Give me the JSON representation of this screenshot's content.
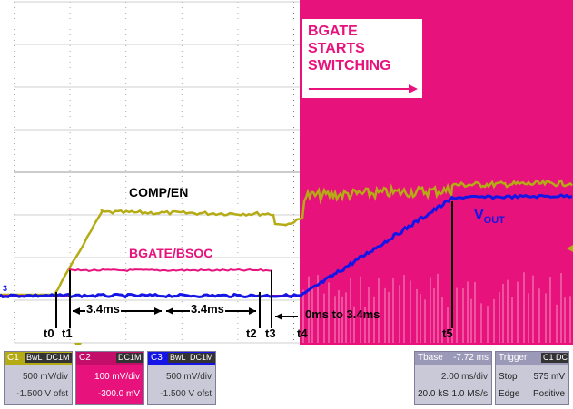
{
  "annotations": {
    "bgate_starts": [
      "BGATE",
      "STARTS",
      "SWITCHING"
    ],
    "comp_en": "COMP/EN",
    "bgate_bsoc": "BGATE/BSOC",
    "vout_main": "V",
    "vout_sub": "OUT",
    "interval1": "3.4ms",
    "interval2": "3.4ms",
    "interval3": "0ms to 3.4ms",
    "t0": "t0",
    "t1": "t1",
    "t2": "t2",
    "t3": "t3",
    "t4": "t4",
    "t5": "t5"
  },
  "channels": [
    {
      "id": "C1",
      "tags": [
        "BwL",
        "DC1M"
      ],
      "scale": "500 mV/div",
      "offset": "-1.500 V ofst",
      "color": "#b5ab14"
    },
    {
      "id": "C2",
      "tags": [
        "DC1M"
      ],
      "scale": "100 mV/div",
      "offset": "-300.0 mV",
      "color": "#e8127d"
    },
    {
      "id": "C3",
      "tags": [
        "BwL",
        "DC1M"
      ],
      "scale": "500 mV/div",
      "offset": "-1.500 V ofst",
      "color": "#1515e6"
    }
  ],
  "timebase": {
    "label": "Tbase",
    "offset": "-7.72 ms",
    "per_div": "2.00 ms/div",
    "samples": "20.0 kS",
    "rate": "1.0 MS/s"
  },
  "trigger": {
    "label": "Trigger",
    "tags": [
      "C1",
      "DC"
    ],
    "mode": "Stop",
    "level": "575 mV",
    "type": "Edge",
    "slope": "Positive"
  },
  "colors": {
    "comp_en": "#b5ab14",
    "bgate": "#e8127d",
    "vout": "#1515e6",
    "grid": "#aaaaaa"
  },
  "markers": {
    "channel3_marker": "3"
  }
}
